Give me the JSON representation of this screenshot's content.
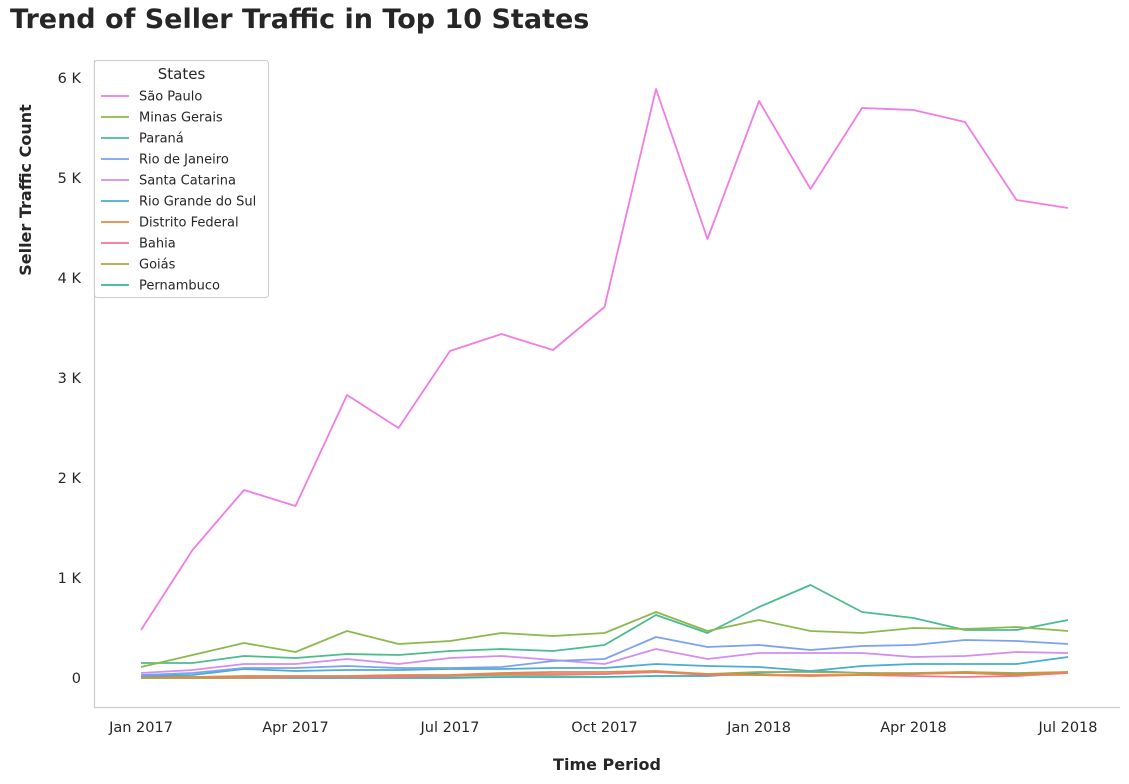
{
  "chart_data": {
    "type": "line",
    "title": "Trend of Seller Traffic in Top 10 States",
    "xlabel": "Time Period",
    "ylabel": "Seller Traffic Count",
    "x": [
      "2017-01",
      "2017-02",
      "2017-03",
      "2017-04",
      "2017-05",
      "2017-06",
      "2017-07",
      "2017-08",
      "2017-09",
      "2017-10",
      "2017-11",
      "2017-12",
      "2018-01",
      "2018-02",
      "2018-03",
      "2018-04",
      "2018-05",
      "2018-06",
      "2018-07"
    ],
    "x_tick_labels": [
      "Jan 2017",
      "Apr 2017",
      "Jul 2017",
      "Oct 2017",
      "Jan 2018",
      "Apr 2018",
      "Jul 2018"
    ],
    "x_tick_values": [
      "2017-01",
      "2017-04",
      "2017-07",
      "2017-10",
      "2018-01",
      "2018-04",
      "2018-07"
    ],
    "y_ticks": [
      0,
      1000,
      2000,
      3000,
      4000,
      5000,
      6000
    ],
    "y_tick_labels": [
      "0",
      "1 K",
      "2 K",
      "3 K",
      "4 K",
      "5 K",
      "6 K"
    ],
    "ylim": [
      -300,
      6250
    ],
    "grid": false,
    "legend": {
      "title": "States",
      "position": "top-left"
    },
    "series": [
      {
        "name": "São Paulo",
        "color": "#f17ce3",
        "values": [
          480,
          1280,
          1880,
          1720,
          2830,
          2500,
          3270,
          3440,
          3280,
          3710,
          5890,
          4390,
          5770,
          4890,
          5700,
          5680,
          5560,
          4780,
          4700
        ]
      },
      {
        "name": "Minas Gerais",
        "color": "#8db84d",
        "values": [
          110,
          230,
          350,
          260,
          470,
          340,
          370,
          450,
          420,
          450,
          660,
          470,
          580,
          470,
          450,
          500,
          490,
          510,
          470
        ]
      },
      {
        "name": "Paraná",
        "color": "#4bbc8e",
        "values": [
          150,
          150,
          220,
          200,
          240,
          230,
          270,
          290,
          270,
          330,
          630,
          450,
          710,
          930,
          660,
          600,
          480,
          480,
          580
        ]
      },
      {
        "name": "Rio de Janeiro",
        "color": "#7aa2f0",
        "values": [
          30,
          50,
          100,
          100,
          120,
          100,
          100,
          110,
          170,
          190,
          410,
          310,
          330,
          280,
          320,
          330,
          380,
          370,
          340
        ]
      },
      {
        "name": "Santa Catarina",
        "color": "#d38cf2",
        "values": [
          50,
          80,
          140,
          140,
          190,
          140,
          200,
          220,
          180,
          140,
          290,
          190,
          250,
          250,
          250,
          210,
          220,
          260,
          250
        ]
      },
      {
        "name": "Rio Grande do Sul",
        "color": "#47aece",
        "values": [
          20,
          30,
          90,
          70,
          80,
          80,
          90,
          90,
          100,
          100,
          140,
          120,
          110,
          70,
          120,
          140,
          140,
          140,
          210
        ]
      },
      {
        "name": "Distrito Federal",
        "color": "#e08a46",
        "values": [
          10,
          10,
          20,
          20,
          20,
          30,
          30,
          50,
          60,
          60,
          70,
          40,
          30,
          20,
          30,
          40,
          50,
          30,
          60
        ]
      },
      {
        "name": "Bahia",
        "color": "#f07790",
        "values": [
          10,
          10,
          10,
          10,
          10,
          10,
          20,
          40,
          40,
          40,
          60,
          30,
          30,
          30,
          30,
          20,
          10,
          20,
          50
        ]
      },
      {
        "name": "Goiás",
        "color": "#a8a84a",
        "values": [
          0,
          0,
          0,
          10,
          10,
          20,
          20,
          30,
          30,
          40,
          60,
          40,
          60,
          60,
          50,
          50,
          60,
          50,
          60
        ]
      },
      {
        "name": "Pernambuco",
        "color": "#36b2a8",
        "values": [
          0,
          0,
          0,
          0,
          0,
          0,
          0,
          10,
          10,
          10,
          20,
          20,
          50,
          70,
          50,
          40,
          60,
          40,
          50
        ]
      }
    ]
  }
}
